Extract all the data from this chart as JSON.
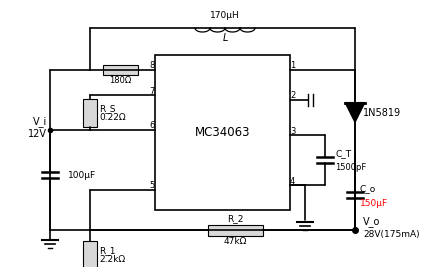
{
  "bg_color": "#ffffff",
  "ic_label": "MC34063",
  "inductor_label": "170μH",
  "diode_label": "1N5819",
  "Rs_label": "R_S",
  "Rs_val": "0.22Ω",
  "Vi_label": "V_i",
  "Vi_val": "12V",
  "Cin_val": "100μF",
  "R180_val": "180Ω",
  "Ct_label": "C_T",
  "Ct_val": "1500pF",
  "R2_label": "R_2",
  "R2_val": "47kΩ",
  "R1_label": "R_1",
  "R1_val": "2.2kΩ",
  "Vo_label": "V_o",
  "Vo_val": "28V(175mA)",
  "Co_label": "C_o",
  "Co_val": "150μF"
}
